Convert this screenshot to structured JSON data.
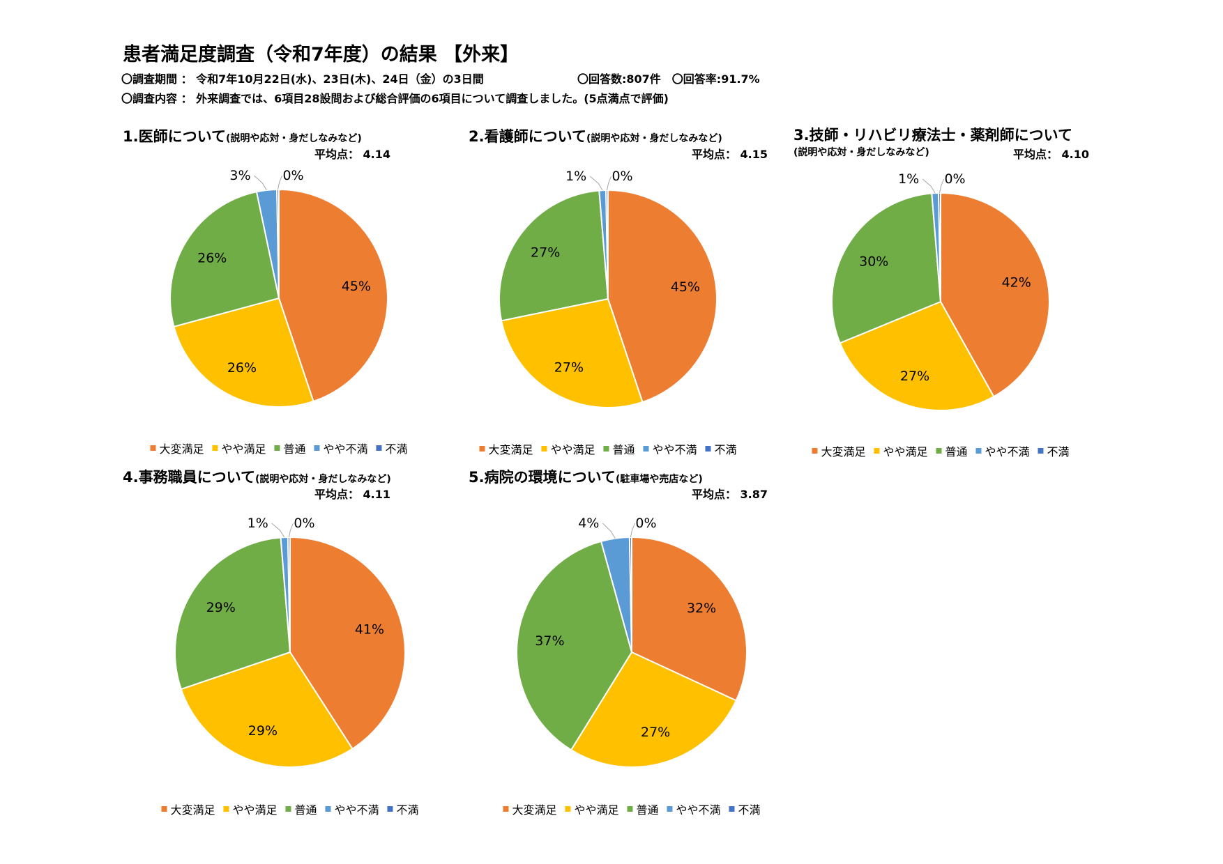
{
  "header": {
    "title": "患者満足度調査（令和7年度）の結果 【外来】",
    "period": "〇調査期間 ： 令和7年10月22日(水)、23日(木)、24日（金）の3日間",
    "responses": "〇回答数:807件　〇回答率:91.7%",
    "content": "〇調査内容 ： 外来調査では、6項目28設問および総合評価の6項目について調査しました。(5点満点で評価)"
  },
  "legend": [
    "大変満足",
    "やや満足",
    "普通",
    "やや不満",
    "不満"
  ],
  "colors": [
    "#ED7D31",
    "#FFC000",
    "#70AD47",
    "#5B9BD5",
    "#4472C4"
  ],
  "chart_data": [
    {
      "type": "pie",
      "title": "1.医師について",
      "subtitle": "(説明や応対・身だしなみなど)",
      "average": "平均点： 4.14",
      "categories": [
        "大変満足",
        "やや満足",
        "普通",
        "やや不満",
        "不満"
      ],
      "values": [
        45,
        26,
        26,
        3,
        0
      ],
      "labels": [
        "45%",
        "26%",
        "26%",
        "3%",
        "0%"
      ]
    },
    {
      "type": "pie",
      "title": "2.看護師について",
      "subtitle": "(説明や応対・身だしなみなど)",
      "average": "平均点： 4.15",
      "categories": [
        "大変満足",
        "やや満足",
        "普通",
        "やや不満",
        "不満"
      ],
      "values": [
        45,
        27,
        27,
        1,
        0
      ],
      "labels": [
        "45%",
        "27%",
        "27%",
        "1%",
        "0%"
      ]
    },
    {
      "type": "pie",
      "title": "3.技師・リハビリ療法士・薬剤師について",
      "subtitle": "(説明や応対・身だしなみなど)",
      "average": "平均点： 4.10",
      "categories": [
        "大変満足",
        "やや満足",
        "普通",
        "やや不満",
        "不満"
      ],
      "values": [
        42,
        27,
        30,
        1,
        0
      ],
      "labels": [
        "42%",
        "27%",
        "30%",
        "1%",
        "0%"
      ]
    },
    {
      "type": "pie",
      "title": "4.事務職員について",
      "subtitle": "(説明や応対・身だしなみなど)",
      "average": "平均点： 4.11",
      "categories": [
        "大変満足",
        "やや満足",
        "普通",
        "やや不満",
        "不満"
      ],
      "values": [
        41,
        29,
        29,
        1,
        0
      ],
      "labels": [
        "41%",
        "29%",
        "29%",
        "1%",
        "0%"
      ]
    },
    {
      "type": "pie",
      "title": "5.病院の環境について",
      "subtitle": "(駐車場や売店など)",
      "average": "平均点： 3.87",
      "categories": [
        "大変満足",
        "やや満足",
        "普通",
        "やや不満",
        "不満"
      ],
      "values": [
        32,
        27,
        37,
        4,
        0
      ],
      "labels": [
        "32%",
        "27%",
        "37%",
        "4%",
        "0%"
      ]
    }
  ]
}
